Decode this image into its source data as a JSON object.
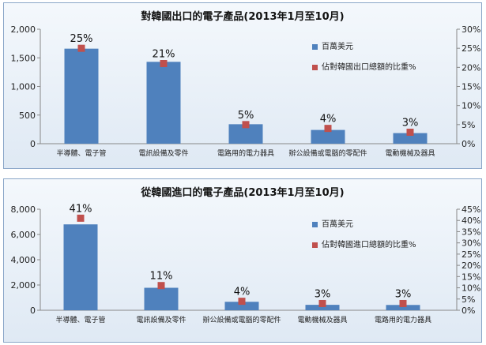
{
  "chart_data": [
    {
      "type": "bar",
      "title": "對韓國出口的電子產品(2013年1月至10月)",
      "categories": [
        "半導體、電子管",
        "電訊設備及零件",
        "電路用的電力器具",
        "辦公設備或電腦的零配件",
        "電動機械及器具"
      ],
      "series": [
        {
          "name": "百萬美元",
          "type": "bar",
          "values": [
            1660,
            1430,
            340,
            240,
            185
          ]
        },
        {
          "name": "佔對韓國出口總額的比重%",
          "type": "marker",
          "values": [
            25,
            21,
            5,
            4,
            3
          ],
          "labels": [
            "25%",
            "21%",
            "5%",
            "4%",
            "3%"
          ]
        }
      ],
      "ylim": [
        0,
        2000
      ],
      "yticks": [
        "0",
        "500",
        "1,000",
        "1,500",
        "2,000"
      ],
      "y2lim": [
        0,
        30
      ],
      "y2ticks": [
        "0%",
        "5%",
        "10%",
        "15%",
        "20%",
        "25%",
        "30%"
      ],
      "legend": "right",
      "colors": {
        "bar": "#4f81bd",
        "marker": "#c0504d"
      }
    },
    {
      "type": "bar",
      "title": "從韓國進口的電子產品(2013年1月至10月)",
      "categories": [
        "半導體、電子管",
        "電訊設備及零件",
        "辦公設備或電腦的零配件",
        "電動機械及器具",
        "電路用的電力器具"
      ],
      "series": [
        {
          "name": "百萬美元",
          "type": "bar",
          "values": [
            6800,
            1780,
            670,
            430,
            420
          ]
        },
        {
          "name": "佔對韓國進口總額的比重%",
          "type": "marker",
          "values": [
            41,
            11,
            4,
            3,
            3
          ],
          "labels": [
            "41%",
            "11%",
            "4%",
            "3%",
            "3%"
          ]
        }
      ],
      "ylim": [
        0,
        8000
      ],
      "yticks": [
        "0",
        "2,000",
        "4,000",
        "6,000",
        "8,000"
      ],
      "y2lim": [
        0,
        45
      ],
      "y2ticks": [
        "0%",
        "5%",
        "10%",
        "15%",
        "20%",
        "25%",
        "30%",
        "35%",
        "40%",
        "45%"
      ],
      "legend": "right",
      "colors": {
        "bar": "#4f81bd",
        "marker": "#c0504d"
      }
    }
  ]
}
